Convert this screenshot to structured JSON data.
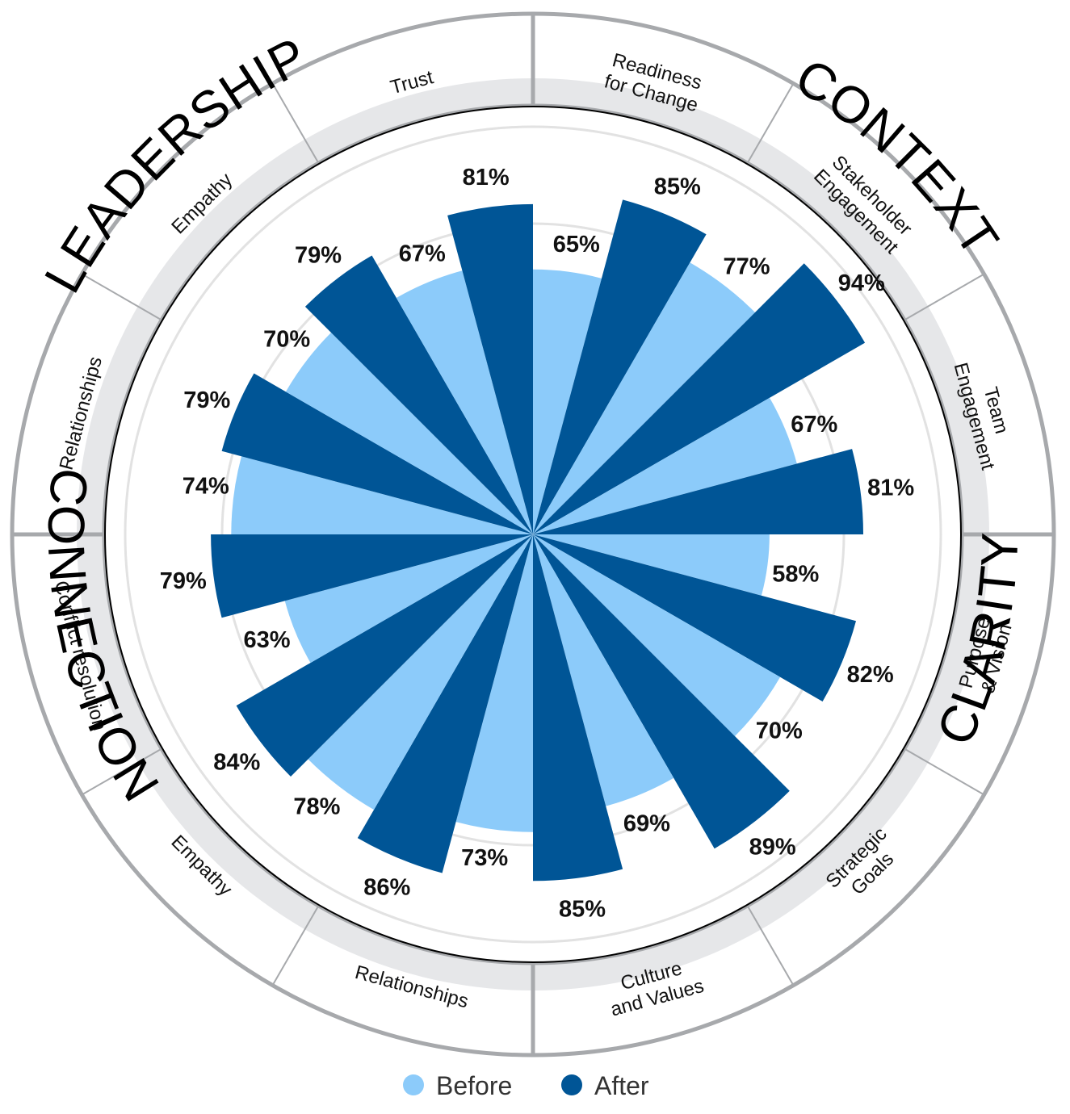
{
  "chart_data": {
    "type": "polar_bar",
    "title": "",
    "scale_max": 100,
    "units": "%",
    "colors": {
      "before": "#8ccbfa",
      "after": "#005596",
      "ring": "#e6e7e9",
      "ring_border": "#a7a9ac"
    },
    "legend": [
      {
        "key": "before",
        "label": "Before"
      },
      {
        "key": "after",
        "label": "After"
      }
    ],
    "quadrants": [
      {
        "label": "CONTEXT"
      },
      {
        "label": "CLARITY"
      },
      {
        "label": "CONNECTION"
      },
      {
        "label": "LEADERSHIP"
      }
    ],
    "categories": [
      {
        "label": [
          "Readiness",
          "for Change"
        ],
        "quadrant": "CONTEXT",
        "before": 65,
        "after": 85,
        "before_label": "65%",
        "after_label": "85%"
      },
      {
        "label": [
          "Stakeholder",
          "Engagement"
        ],
        "quadrant": "CONTEXT",
        "before": 77,
        "after": 94,
        "before_label": "77%",
        "after_label": "94%"
      },
      {
        "label": [
          "Team",
          "Engagement"
        ],
        "quadrant": "CONTEXT",
        "before": 67,
        "after": 81,
        "before_label": "67%",
        "after_label": "81%"
      },
      {
        "label": [
          "Purpose",
          "& Vision"
        ],
        "quadrant": "CLARITY",
        "before": 58,
        "after": 82,
        "before_label": "58%",
        "after_label": "82%"
      },
      {
        "label": [
          "Strategic",
          "Goals"
        ],
        "quadrant": "CLARITY",
        "before": 70,
        "after": 89,
        "before_label": "70%",
        "after_label": "89%"
      },
      {
        "label": [
          "Culture",
          "and Values"
        ],
        "quadrant": "CLARITY",
        "before": 69,
        "after": 85,
        "before_label": "69%",
        "after_label": "85%"
      },
      {
        "label": [
          "Relationships"
        ],
        "quadrant": "CONNECTION",
        "before": 73,
        "after": 86,
        "before_label": "73%",
        "after_label": "86%"
      },
      {
        "label": [
          "Empathy"
        ],
        "quadrant": "CONNECTION",
        "before": 78,
        "after": 84,
        "before_label": "78%",
        "after_label": "84%"
      },
      {
        "label": [
          "Conflict resolution"
        ],
        "quadrant": "CONNECTION",
        "before": 63,
        "after": 79,
        "before_label": "63%",
        "after_label": "79%"
      },
      {
        "label": [
          "Relationships"
        ],
        "quadrant": "LEADERSHIP",
        "before": 74,
        "after": 79,
        "before_label": "74%",
        "after_label": "79%"
      },
      {
        "label": [
          "Empathy"
        ],
        "quadrant": "LEADERSHIP",
        "before": 70,
        "after": 79,
        "before_label": "70%",
        "after_label": "79%"
      },
      {
        "label": [
          "Trust"
        ],
        "quadrant": "LEADERSHIP",
        "before": 67,
        "after": 81,
        "before_label": "67%",
        "after_label": "81%"
      }
    ]
  }
}
